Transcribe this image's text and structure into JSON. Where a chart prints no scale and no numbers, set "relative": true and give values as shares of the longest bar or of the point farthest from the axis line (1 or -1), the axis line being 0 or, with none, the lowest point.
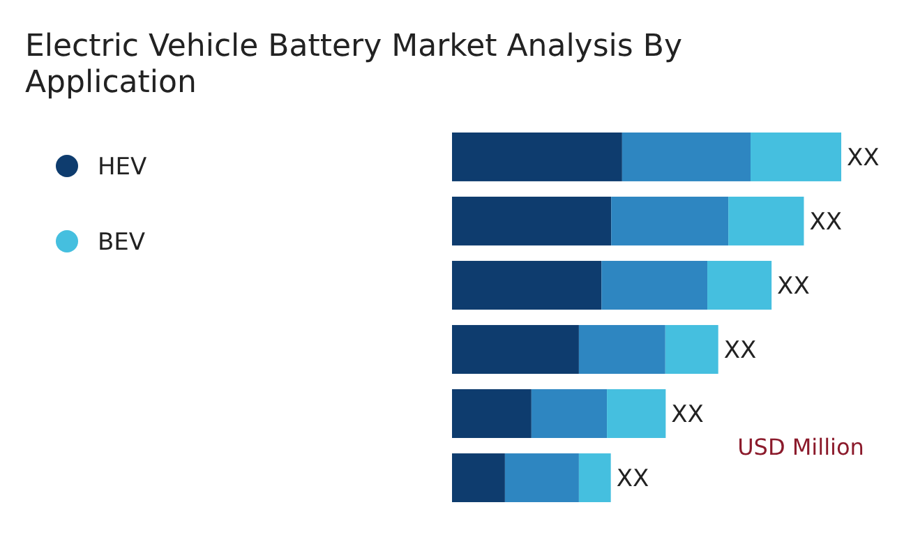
{
  "chart_data": {
    "type": "bar",
    "title": "Electric Vehicle Battery Market Analysis By Application",
    "orientation": "horizontal",
    "stacked": true,
    "relative": true,
    "categories": [
      null,
      null,
      null,
      null,
      null,
      null
    ],
    "series": [
      {
        "name": "HEV",
        "color": "#0e3c6e",
        "values": [
          0.437,
          0.409,
          0.384,
          0.326,
          0.204,
          0.136
        ]
      },
      {
        "color": "#2e86c1",
        "values": [
          0.33,
          0.301,
          0.272,
          0.222,
          0.194,
          0.19
        ]
      },
      {
        "name": "BEV",
        "color": "#45bfdf",
        "values": [
          0.233,
          0.194,
          0.165,
          0.136,
          0.151,
          0.082
        ]
      }
    ],
    "totals": [
      "XX",
      "XX",
      "XX",
      "XX",
      "XX",
      "XX"
    ],
    "legend": "left",
    "annotations": [
      "USD Million"
    ]
  }
}
